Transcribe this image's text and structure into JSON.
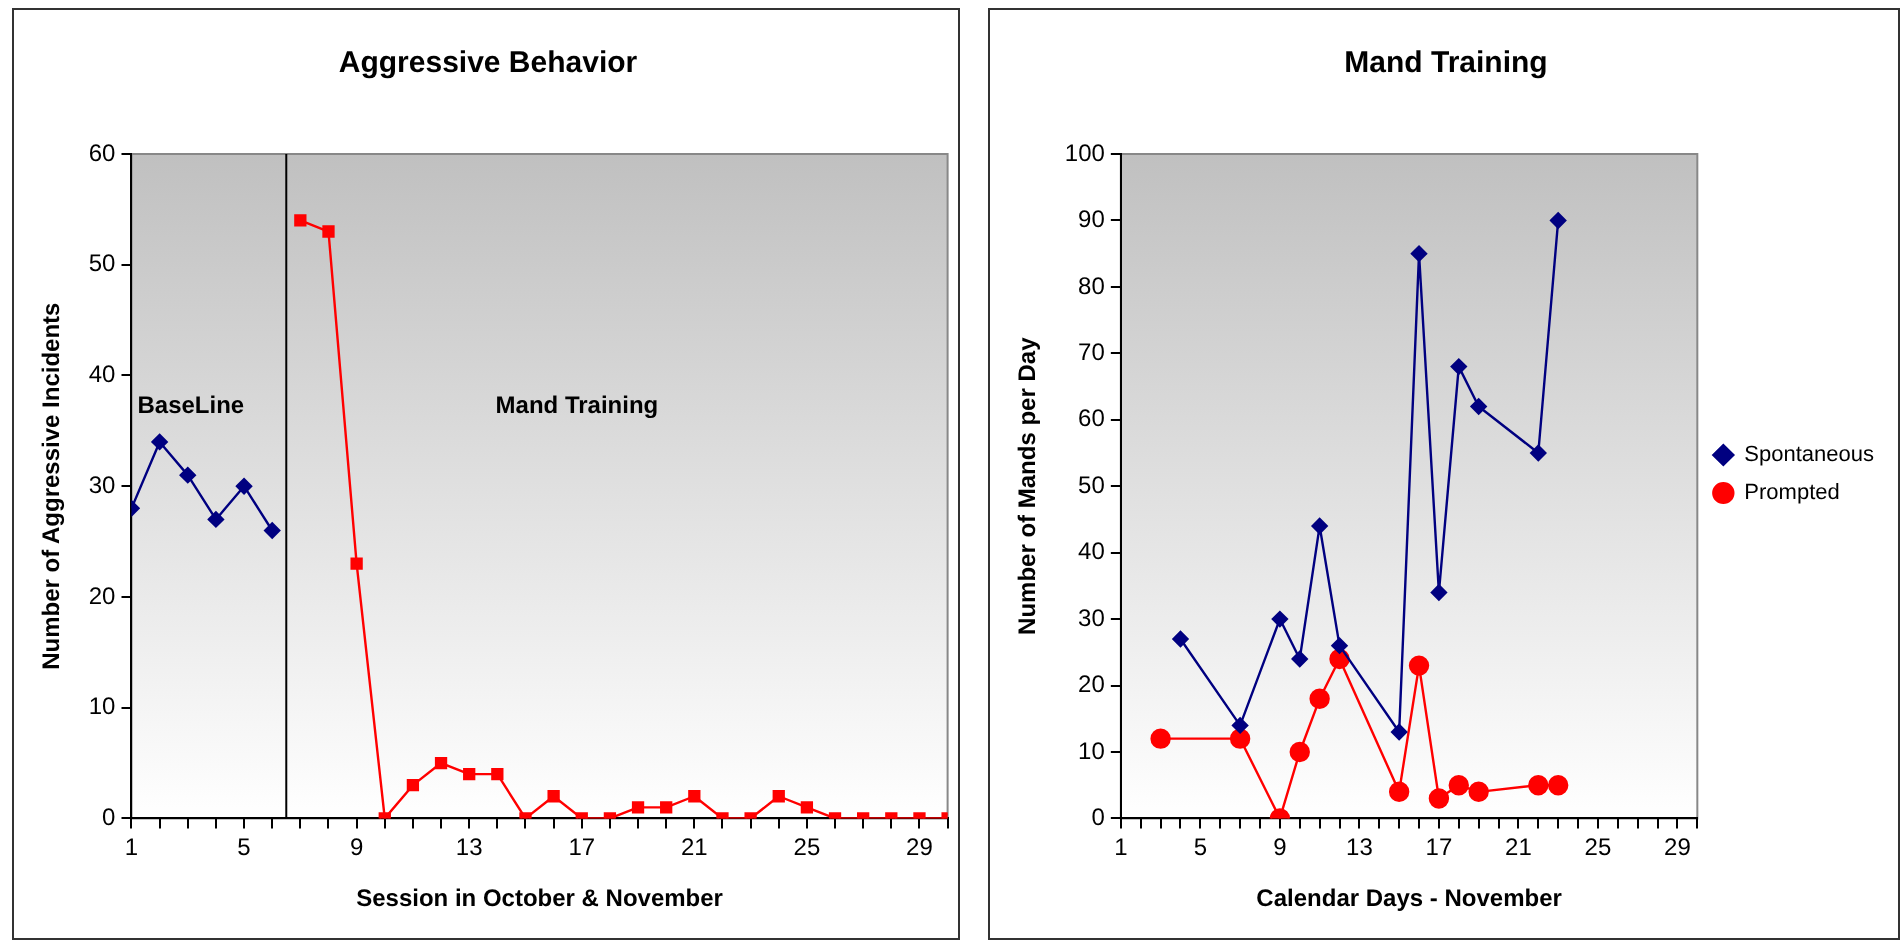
{
  "chart_data": [
    {
      "type": "line",
      "title": "Aggressive Behavior",
      "xlabel": "Session in October & November",
      "ylabel": "Number of Aggressive Incidents",
      "xlim": [
        1,
        30
      ],
      "xticks": [
        1,
        {
          "value": 2,
          "label": null
        },
        {
          "value": 3,
          "label": null
        },
        {
          "value": 4,
          "label": null
        },
        5,
        {
          "value": 6,
          "label": null
        },
        {
          "value": 7,
          "label": null
        },
        {
          "value": 8,
          "label": null
        },
        9,
        {
          "value": 10,
          "label": null
        },
        {
          "value": 11,
          "label": null
        },
        {
          "value": 12,
          "label": null
        },
        13,
        {
          "value": 14,
          "label": null
        },
        {
          "value": 15,
          "label": null
        },
        {
          "value": 16,
          "label": null
        },
        17,
        {
          "value": 18,
          "label": null
        },
        {
          "value": 19,
          "label": null
        },
        {
          "value": 20,
          "label": null
        },
        21,
        {
          "value": 22,
          "label": null
        },
        {
          "value": 23,
          "label": null
        },
        {
          "value": 24,
          "label": null
        },
        25,
        {
          "value": 26,
          "label": null
        },
        {
          "value": 27,
          "label": null
        },
        {
          "value": 28,
          "label": null
        },
        29,
        {
          "value": 30,
          "label": null
        }
      ],
      "ylim": [
        0,
        60
      ],
      "yticks": [
        0,
        10,
        20,
        30,
        40,
        50,
        60
      ],
      "legend": false,
      "series": [
        {
          "color": "#000080",
          "marker": "diamond",
          "x": [
            1,
            2,
            3,
            4,
            5,
            6
          ],
          "values": [
            28,
            34,
            31,
            27,
            30,
            26
          ]
        },
        {
          "color": "#ff0000",
          "marker": "square",
          "x": [
            7,
            8,
            9,
            10,
            11,
            12,
            13,
            14,
            15,
            16,
            17,
            18,
            19,
            20,
            21,
            22,
            23,
            24,
            25,
            26,
            27,
            28,
            29,
            30
          ],
          "values": [
            54,
            53,
            23,
            0,
            3,
            5,
            4,
            4,
            0,
            2,
            0,
            0,
            1,
            1,
            2,
            0,
            0,
            2,
            1,
            0,
            0,
            0,
            0,
            0
          ]
        }
      ],
      "ref_lines": [
        {
          "axis": "x",
          "value": 6.5,
          "color": "#000000"
        }
      ],
      "annotations": [
        "BaseLine",
        "Mand Training"
      ]
    },
    {
      "type": "line",
      "title": "Mand Training",
      "xlabel": "Calendar Days - November",
      "ylabel": "Number of Mands per Day",
      "xlim": [
        1,
        30
      ],
      "xticks": [
        1,
        {
          "value": 2,
          "label": null
        },
        {
          "value": 3,
          "label": null
        },
        {
          "value": 4,
          "label": null
        },
        5,
        {
          "value": 6,
          "label": null
        },
        {
          "value": 7,
          "label": null
        },
        {
          "value": 8,
          "label": null
        },
        9,
        {
          "value": 10,
          "label": null
        },
        {
          "value": 11,
          "label": null
        },
        {
          "value": 12,
          "label": null
        },
        13,
        {
          "value": 14,
          "label": null
        },
        {
          "value": 15,
          "label": null
        },
        {
          "value": 16,
          "label": null
        },
        17,
        {
          "value": 18,
          "label": null
        },
        {
          "value": 19,
          "label": null
        },
        {
          "value": 20,
          "label": null
        },
        21,
        {
          "value": 22,
          "label": null
        },
        {
          "value": 23,
          "label": null
        },
        {
          "value": 24,
          "label": null
        },
        25,
        {
          "value": 26,
          "label": null
        },
        {
          "value": 27,
          "label": null
        },
        {
          "value": 28,
          "label": null
        },
        29,
        {
          "value": 30,
          "label": null
        }
      ],
      "ylim": [
        0,
        100
      ],
      "yticks": [
        0,
        10,
        20,
        30,
        40,
        50,
        60,
        70,
        80,
        90,
        100
      ],
      "legend": "right",
      "series": [
        {
          "name": "Spontaneous",
          "color": "#000080",
          "marker": "diamond",
          "x": [
            4,
            7,
            9,
            10,
            11,
            12,
            15,
            16,
            17,
            18,
            19,
            22,
            23
          ],
          "values": [
            27,
            14,
            30,
            24,
            44,
            26,
            13,
            85,
            34,
            68,
            62,
            55,
            90
          ]
        },
        {
          "name": "Prompted",
          "color": "#ff0000",
          "marker": "circle",
          "x": [
            3,
            7,
            9,
            10,
            11,
            12,
            15,
            16,
            17,
            18,
            19,
            22,
            23
          ],
          "values": [
            12,
            12,
            0,
            10,
            18,
            24,
            4,
            23,
            3,
            5,
            4,
            5,
            5
          ]
        }
      ]
    }
  ]
}
